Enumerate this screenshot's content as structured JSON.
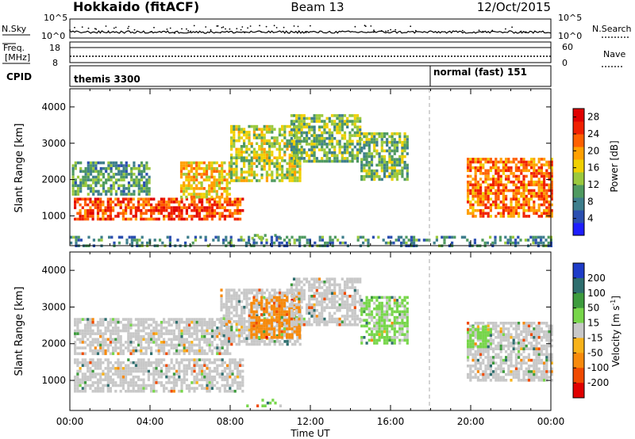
{
  "header": {
    "station": "Hokkaido (fitACF)",
    "beam": "Beam 13",
    "date": "12/Oct/2015"
  },
  "summary_rows": {
    "nsky_label": "N.Sky",
    "nsky_ticks": [
      "10^5",
      "10^0"
    ],
    "nsearch_label": "N.Search",
    "freq_label_1": "Freq.",
    "freq_label_2": "[MHz]",
    "freq_ticks": [
      "18",
      "8"
    ],
    "nave_ticks": [
      "60",
      "0"
    ],
    "nave_label": "Nave",
    "cpid_label": "CPID",
    "cpid_modes": [
      "themis 3300",
      "normal (fast) 151"
    ]
  },
  "chart_data": [
    {
      "type": "heatmap",
      "name": "power",
      "ylabel": "Slant Range [km]",
      "xlabel": "",
      "x_ticks": [
        "00:00",
        "04:00",
        "08:00",
        "12:00",
        "16:00",
        "20:00",
        "00:00"
      ],
      "y_ticks": [
        1000,
        2000,
        3000,
        4000
      ],
      "xlim_hours": [
        0,
        24
      ],
      "ylim": [
        180,
        4500
      ],
      "colorbar": {
        "label": "Power [dB]",
        "ticks": [
          4,
          8,
          12,
          16,
          20,
          24,
          28
        ],
        "range": [
          0,
          30
        ],
        "colors": [
          "#1e1eff",
          "#2b4fb0",
          "#3e7e8c",
          "#4f9a60",
          "#9bc93d",
          "#f0d000",
          "#ffa000",
          "#ff6000",
          "#f02000",
          "#e00000"
        ]
      },
      "mode_change_hour": 18,
      "echo_regions": [
        {
          "t": [
            0.2,
            8.6
          ],
          "r": [
            900,
            1500
          ],
          "p": 24
        },
        {
          "t": [
            5.5,
            8.0
          ],
          "r": [
            1500,
            2500
          ],
          "p": 18
        },
        {
          "t": [
            0.1,
            4.0
          ],
          "r": [
            1600,
            2500
          ],
          "p": 10
        },
        {
          "t": [
            8.0,
            11.5
          ],
          "r": [
            2000,
            3500
          ],
          "p": 14
        },
        {
          "t": [
            11.0,
            14.5
          ],
          "r": [
            2500,
            3800
          ],
          "p": 12
        },
        {
          "t": [
            14.5,
            16.8
          ],
          "r": [
            2000,
            3300
          ],
          "p": 12
        },
        {
          "t": [
            19.8,
            24.0
          ],
          "r": [
            1000,
            2600
          ],
          "p": 22
        },
        {
          "t": [
            8.8,
            10.5
          ],
          "r": [
            350,
            500
          ],
          "p": 14
        },
        {
          "t": [
            0.0,
            24.0
          ],
          "r": [
            200,
            450
          ],
          "p": 8
        }
      ]
    },
    {
      "type": "heatmap",
      "name": "velocity",
      "ylabel": "Slant Range [km]",
      "xlabel": "Time UT",
      "x_ticks": [
        "00:00",
        "04:00",
        "08:00",
        "12:00",
        "16:00",
        "20:00",
        "00:00"
      ],
      "y_ticks": [
        1000,
        2000,
        3000,
        4000
      ],
      "xlim_hours": [
        0,
        24
      ],
      "ylim": [
        180,
        4500
      ],
      "colorbar": {
        "label": "Velocity [m s-1]",
        "ticks": [
          200,
          100,
          50,
          15,
          -15,
          -50,
          -100,
          -200
        ],
        "colors": [
          "#1e3cc8",
          "#2e6e6e",
          "#3d9b3d",
          "#77d64a",
          "#c8c8c8",
          "#f7b21a",
          "#f78a0c",
          "#f04a00",
          "#e00000"
        ]
      },
      "mode_change_hour": 18,
      "echo_regions": [
        {
          "t": [
            0.2,
            8.6
          ],
          "r": [
            700,
            1600
          ],
          "v": 0
        },
        {
          "t": [
            0.2,
            8.0
          ],
          "r": [
            1700,
            2700
          ],
          "v": 0
        },
        {
          "t": [
            7.5,
            11.5
          ],
          "r": [
            2000,
            3500
          ],
          "v": 0
        },
        {
          "t": [
            9.0,
            11.5
          ],
          "r": [
            2200,
            3300
          ],
          "v": -60
        },
        {
          "t": [
            11.0,
            14.5
          ],
          "r": [
            2500,
            3800
          ],
          "v": 0
        },
        {
          "t": [
            14.5,
            16.8
          ],
          "r": [
            2000,
            3300
          ],
          "v": 20
        },
        {
          "t": [
            19.8,
            24.0
          ],
          "r": [
            1000,
            2600
          ],
          "v": 0
        },
        {
          "t": [
            19.8,
            21.0
          ],
          "r": [
            1900,
            2500
          ],
          "v": 30
        },
        {
          "t": [
            8.8,
            10.5
          ],
          "r": [
            300,
            500
          ],
          "v": 40
        }
      ]
    }
  ]
}
